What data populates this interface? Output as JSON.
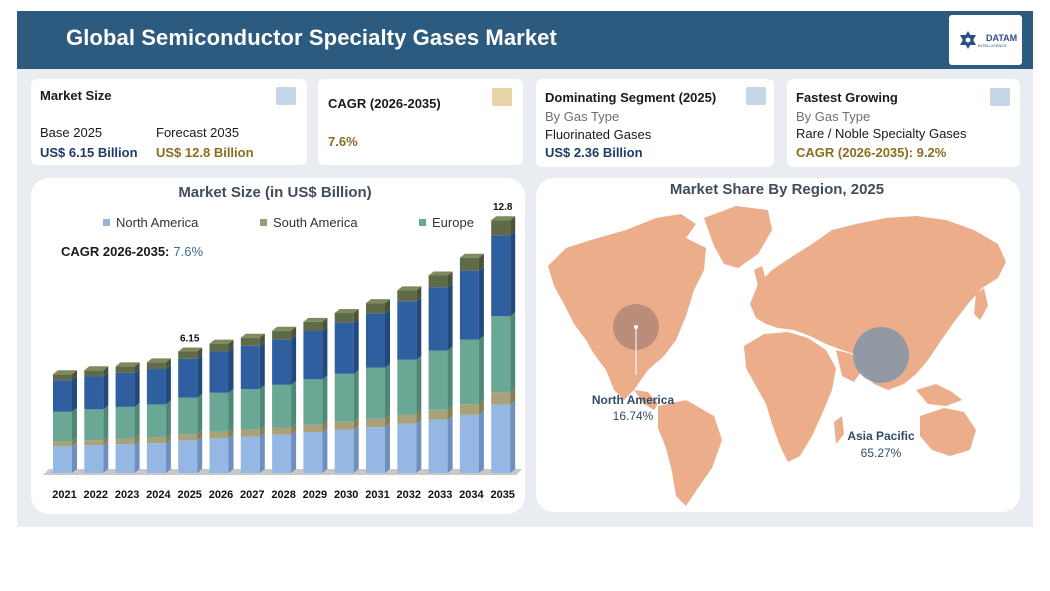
{
  "header": {
    "title": "Global Semiconductor Specialty Gases Market"
  },
  "logo": {
    "name": "DATAM",
    "sub": "INTELLIGENCE",
    "icon": "star-of-david-icon"
  },
  "cards": {
    "market_size": {
      "title": "Market Size",
      "base_label": "Base 2025",
      "base_value": "US$ 6.15 Billion",
      "forecast_label": "Forecast 2035",
      "forecast_value": "US$ 12.8 Billion",
      "badge_color": "#c5d6e8"
    },
    "cagr": {
      "title": "CAGR (2026-2035)",
      "value": "7.6%",
      "badge_color": "#e6d3a8"
    },
    "dominating": {
      "title": "Dominating Segment (2025)",
      "sub": "By Gas Type",
      "segment": "Fluorinated Gases",
      "value": "US$ 2.36 Billion",
      "badge_color": "#c5d6e8"
    },
    "fastest": {
      "title": "Fastest Growing",
      "sub": "By Gas Type",
      "segment": "Rare / Noble Specialty Gases",
      "cagr_label": "CAGR (2026-2035): 9.2%",
      "badge_color": "#c5d6e8"
    }
  },
  "chart_data": [
    {
      "type": "bar",
      "stacked": true,
      "title": "Market Size (in US$ Billion)",
      "annotation": {
        "label": "CAGR 2026-2035:",
        "value": "7.6%"
      },
      "legend": [
        "North America",
        "South America",
        "Europe"
      ],
      "categories": [
        "2021",
        "2022",
        "2023",
        "2024",
        "2025",
        "2026",
        "2027",
        "2028",
        "2029",
        "2030",
        "2031",
        "2032",
        "2033",
        "2034",
        "2035"
      ],
      "totals": [
        5.0,
        5.2,
        5.4,
        5.6,
        6.15,
        6.55,
        6.85,
        7.2,
        7.65,
        8.1,
        8.6,
        9.25,
        10.0,
        10.9,
        12.8
      ],
      "data_labels": {
        "2025": "6.15",
        "2035": "12.8"
      },
      "segment_shares": [
        0.27,
        0.05,
        0.3,
        0.32,
        0.06
      ],
      "segment_colors": [
        "#94b8e3",
        "#a9a279",
        "#6aa895",
        "#2f5f9e",
        "#5f6a48"
      ],
      "legend_colors": [
        "#94b2d6",
        "#9e9a77",
        "#6aa895"
      ]
    },
    {
      "type": "map",
      "title": "Market Share By Region, 2025",
      "regions": [
        {
          "name": "North America",
          "value": "16.74%",
          "share": 16.74
        },
        {
          "name": "Asia Pacific",
          "value": "65.27%",
          "share": 65.27
        }
      ],
      "land_color": "#ecad8b"
    }
  ]
}
